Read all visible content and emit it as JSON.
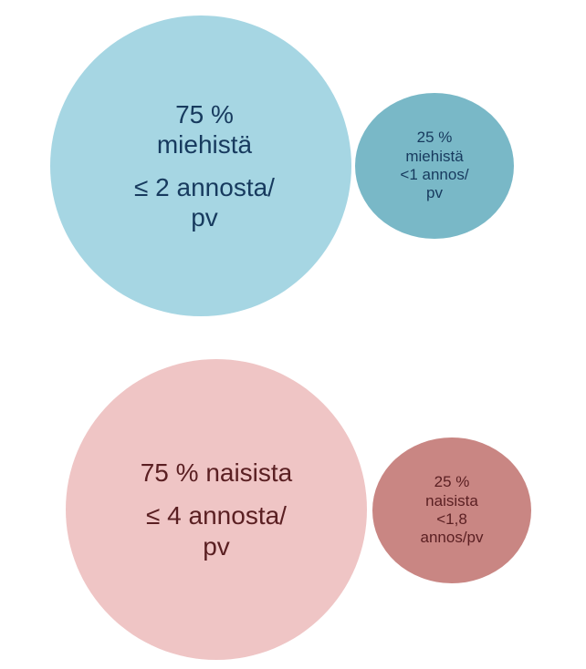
{
  "men": {
    "majority": {
      "line1": "75 %",
      "line2": "miehistä",
      "line3": "≤ 2 annosta/",
      "line4": "pv",
      "color": "#a6d6e3"
    },
    "minority": {
      "line1": "25 %",
      "line2": "miehistä",
      "line3": "<1 annos/",
      "line4": "pv",
      "color": "#79b8c7"
    },
    "text_color": "#173a5e"
  },
  "women": {
    "majority": {
      "line1": "75 % naisista",
      "line2": "≤ 4 annosta/",
      "line3": "pv",
      "color": "#efc5c5"
    },
    "minority": {
      "line1": "25 %",
      "line2": "naisista",
      "line3": "<1,8",
      "line4": "annos/pv",
      "color": "#c98683"
    },
    "text_color": "#5a1f22"
  }
}
